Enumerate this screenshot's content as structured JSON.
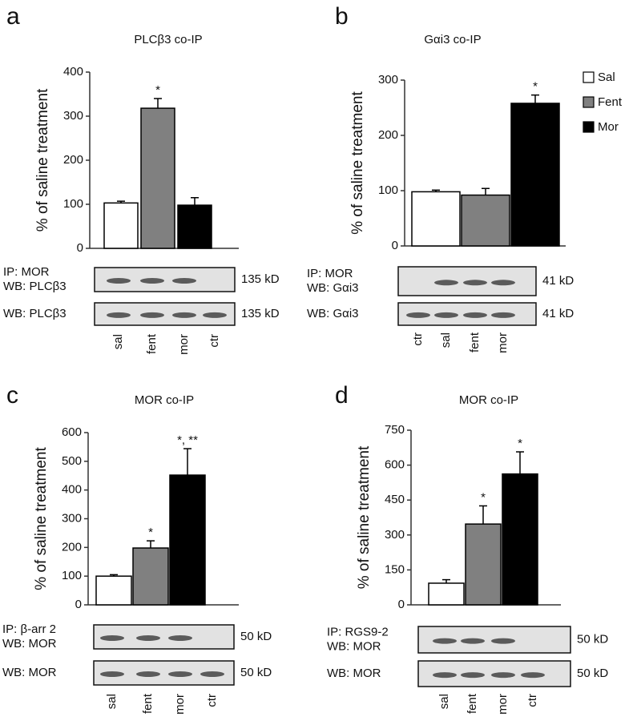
{
  "legend": [
    {
      "name": "Sal",
      "color": "#ffffff"
    },
    {
      "name": "Fent",
      "color": "#808080"
    },
    {
      "name": "Mor",
      "color": "#000000"
    }
  ],
  "chart_data": [
    {
      "type": "bar",
      "panel": "a",
      "title": "PLCβ3  co-IP",
      "y_label": "% of saline treatment",
      "values": [
        103,
        318,
        98
      ],
      "errors": [
        4,
        22,
        17
      ],
      "colors": [
        "#ffffff",
        "#808080",
        "#000000"
      ],
      "annotations": [
        null,
        "*",
        null
      ],
      "ylim": [
        0,
        400
      ],
      "yticks": [
        0,
        100,
        200,
        300,
        400
      ],
      "blots": [
        {
          "labels": [
            "IP: MOR",
            "WB: PLCβ3"
          ],
          "size": "135 kD"
        },
        {
          "labels": [
            "WB: PLCβ3"
          ],
          "size": "135 kD"
        }
      ],
      "lanes": [
        "sal",
        "fent",
        "mor",
        "ctr"
      ]
    },
    {
      "type": "bar",
      "panel": "b",
      "title": "Gαi3  co-IP",
      "y_label": "% of saline treatment",
      "values": [
        98,
        92,
        258
      ],
      "errors": [
        3,
        12,
        15
      ],
      "colors": [
        "#ffffff",
        "#808080",
        "#000000"
      ],
      "annotations": [
        null,
        null,
        "*"
      ],
      "ylim": [
        0,
        300
      ],
      "yticks": [
        0,
        100,
        200,
        300
      ],
      "blots": [
        {
          "labels": [
            "IP: MOR",
            "WB: Gαi3"
          ],
          "size": "41 kD"
        },
        {
          "labels": [
            "WB: Gαi3"
          ],
          "size": "41 kD"
        }
      ],
      "lanes": [
        "ctr",
        "sal",
        "fent",
        "mor"
      ]
    },
    {
      "type": "bar",
      "panel": "c",
      "title": "MOR  co-IP",
      "y_label": "% of saline treatment",
      "values": [
        100,
        198,
        452
      ],
      "errors": [
        5,
        25,
        92
      ],
      "colors": [
        "#ffffff",
        "#808080",
        "#000000"
      ],
      "annotations": [
        null,
        "*",
        "*, **"
      ],
      "ylim": [
        0,
        600
      ],
      "yticks": [
        0,
        100,
        200,
        300,
        400,
        500,
        600
      ],
      "blots": [
        {
          "labels": [
            "IP: β-arr 2",
            "WB: MOR"
          ],
          "size": "50 kD"
        },
        {
          "labels": [
            "WB: MOR"
          ],
          "size": "50 kD"
        }
      ],
      "lanes": [
        "sal",
        "fent",
        "mor",
        "ctr"
      ]
    },
    {
      "type": "bar",
      "panel": "d",
      "title": "MOR  co-IP",
      "y_label": "% of saline treatment",
      "values": [
        93,
        347,
        562
      ],
      "errors": [
        15,
        78,
        95
      ],
      "colors": [
        "#ffffff",
        "#808080",
        "#000000"
      ],
      "annotations": [
        null,
        "*",
        "*"
      ],
      "ylim": [
        0,
        750
      ],
      "yticks": [
        0,
        150,
        300,
        450,
        600,
        750
      ],
      "blots": [
        {
          "labels": [
            "IP: RGS9-2",
            "WB: MOR"
          ],
          "size": "50 kD"
        },
        {
          "labels": [
            "WB: MOR"
          ],
          "size": "50 kD"
        }
      ],
      "lanes": [
        "sal",
        "fent",
        "mor",
        "ctr"
      ]
    }
  ]
}
